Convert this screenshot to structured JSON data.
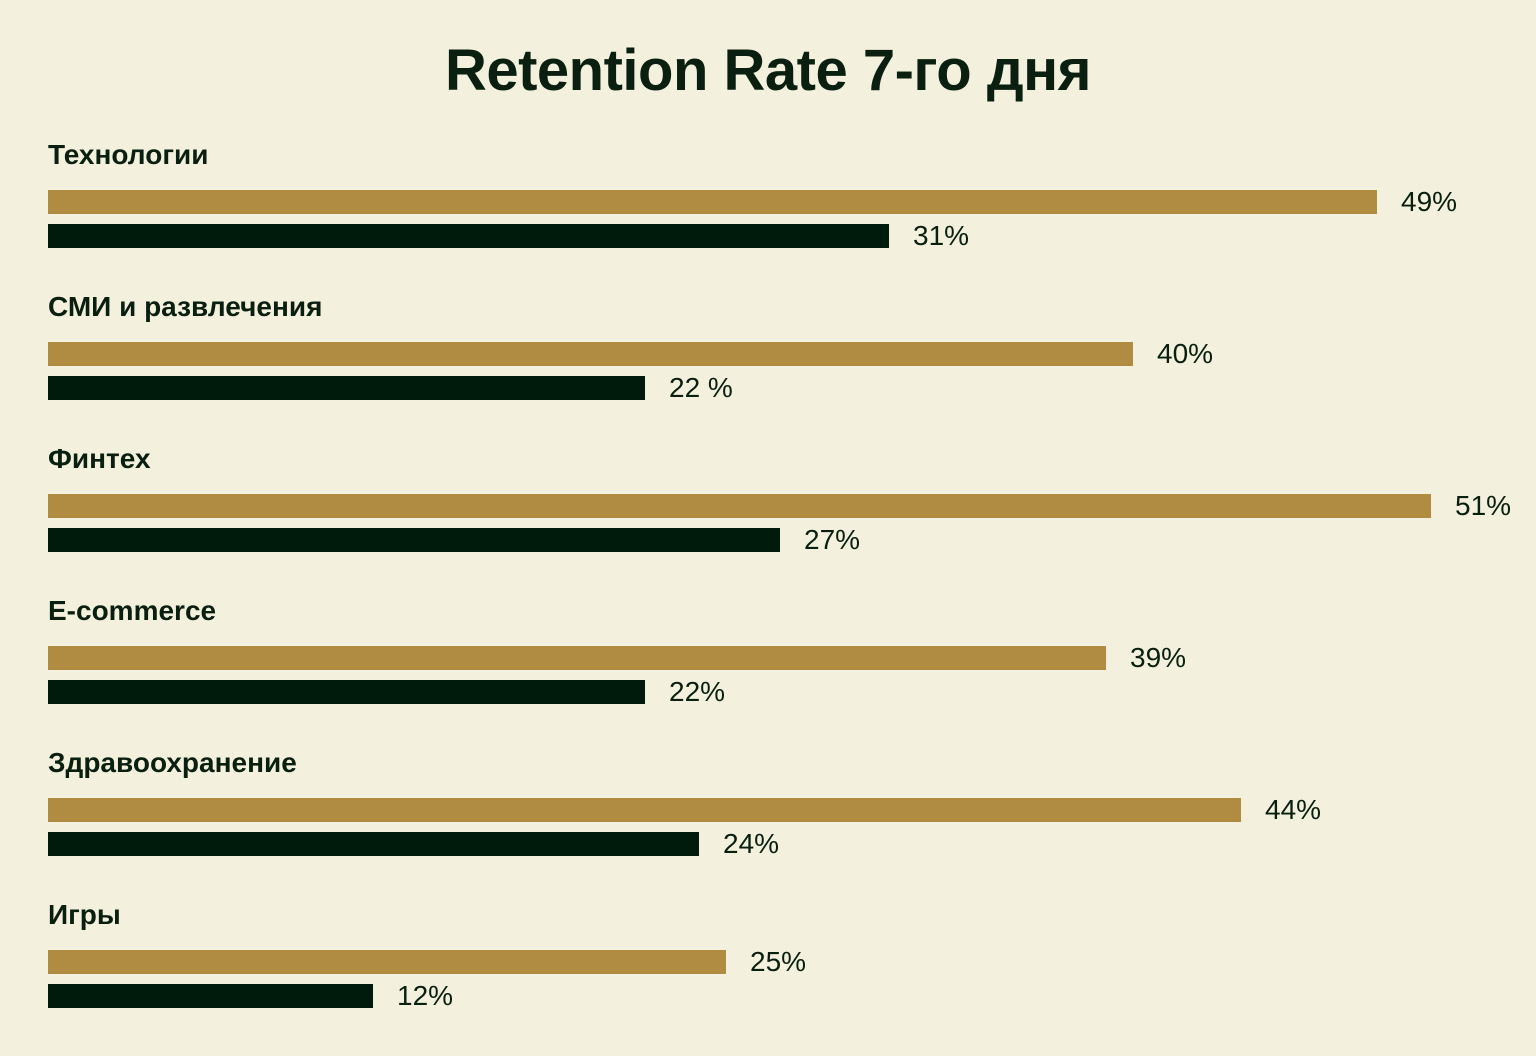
{
  "chart_data": {
    "type": "bar",
    "orientation": "horizontal",
    "title": "Retention Rate 7-го дня",
    "categories": [
      "Технологии",
      "СМИ и развлечения",
      "Финтех",
      "E-commerce",
      "Здравоохранение",
      "Игры"
    ],
    "series": [
      {
        "color": "#b08c43",
        "values": [
          49,
          40,
          51,
          39,
          44,
          25
        ],
        "labels": [
          "49%",
          "40%",
          "51%",
          "39%",
          "44%",
          "25%"
        ]
      },
      {
        "color": "#001b0c",
        "values": [
          31,
          22,
          27,
          22,
          24,
          12
        ],
        "labels": [
          "31%",
          "22 %",
          "27%",
          "22%",
          "24%",
          "12%"
        ]
      }
    ],
    "xlim": [
      0,
      51
    ],
    "grid": false,
    "legend": "none"
  }
}
